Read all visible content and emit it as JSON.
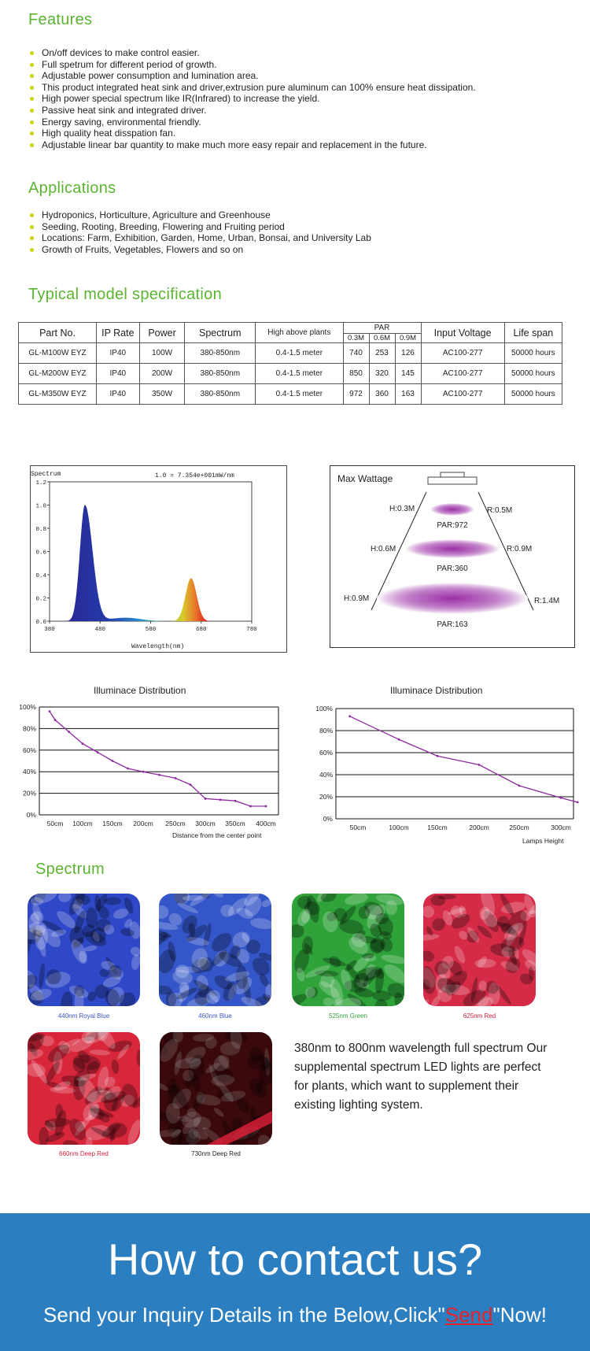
{
  "features": {
    "title": "Features",
    "items": [
      "On/off devices to make control easier.",
      "Full spetrum for different period of growth.",
      "Adjustable power consumption and lumination area.",
      "This product integrated heat sink and driver,extrusion pure aluminum can 100% ensure heat dissipation.",
      "High power special spectrum like IR(Infrared) to increase the yield.",
      "Passive heat sink and integrated driver.",
      "Energy saving, environmental friendly.",
      "High quality heat disspation fan.",
      "Adjustable linear bar quantity to make much more easy repair and replacement in the future."
    ]
  },
  "applications": {
    "title": "Applications",
    "items": [
      "Hydroponics, Horticulture, Agriculture and Greenhouse",
      "Seeding, Rooting, Breeding, Flowering and Fruiting period",
      "Locations: Farm, Exhibition, Garden, Home, Urban, Bonsai, and University Lab",
      "Growth of Fruits, Vegetables, Flowers and so on"
    ]
  },
  "spec": {
    "title": "Typical model specification",
    "headers": {
      "part": "Part No.",
      "ip": "IP Rate",
      "power": "Power",
      "spectrum": "Spectrum",
      "height": "High above plants",
      "par": "PAR",
      "par_sub": [
        "0.3M",
        "0.6M",
        "0.9M"
      ],
      "voltage": "Input Voltage",
      "life": "Life span"
    },
    "rows": [
      {
        "part": "GL-M100W EYZ",
        "ip": "IP40",
        "power": "100W",
        "spectrum": "380-850nm",
        "height": "0.4-1.5 meter",
        "par": [
          "740",
          "253",
          "126"
        ],
        "voltage": "AC100-277",
        "life": "50000 hours"
      },
      {
        "part": "GL-M200W EYZ",
        "ip": "IP40",
        "power": "200W",
        "spectrum": "380-850nm",
        "height": "0.4-1.5 meter",
        "par": [
          "850",
          "320",
          "145"
        ],
        "voltage": "AC100-277",
        "life": "50000 hours"
      },
      {
        "part": "GL-M350W EYZ",
        "ip": "IP40",
        "power": "350W",
        "spectrum": "380-850nm",
        "height": "0.4-1.5 meter",
        "par": [
          "972",
          "360",
          "163"
        ],
        "voltage": "AC100-277",
        "life": "50000 hours"
      }
    ]
  },
  "chart_data": [
    {
      "type": "area",
      "ylabel": "Spectrum",
      "xlabel": "Wavelength(nm)",
      "annotation": "1.0 = 7.354e+001mW/nm",
      "xlim": [
        380,
        780
      ],
      "ylim": [
        0,
        1.2
      ],
      "x_ticks": [
        "380",
        "480",
        "580",
        "680",
        "780"
      ],
      "y_ticks": [
        "0.0",
        "0.2",
        "0.4",
        "0.6",
        "0.8",
        "1.0",
        "1.2"
      ],
      "peaks": [
        {
          "center_nm": 450,
          "value": 1.0
        },
        {
          "center_nm": 660,
          "value": 0.37
        }
      ]
    },
    {
      "type": "line",
      "title": "Illuminace Distribution",
      "xlabel": "Distance from the center point",
      "categories": [
        "50cm",
        "100cm",
        "150cm",
        "200cm",
        "250cm",
        "300cm",
        "350cm",
        "400cm"
      ],
      "y_ticks": [
        "0%",
        "20%",
        "40%",
        "60%",
        "80%",
        "100%"
      ],
      "ylim": [
        0,
        100
      ],
      "x": [
        40,
        50,
        75,
        100,
        125,
        150,
        175,
        200,
        225,
        250,
        275,
        300,
        325,
        350,
        375,
        400
      ],
      "values": [
        96,
        88,
        77,
        66,
        58,
        50,
        43,
        40,
        37,
        34,
        28,
        15,
        14,
        13,
        8,
        8
      ],
      "color": "#8e2ba0"
    },
    {
      "type": "line",
      "title": "Illuminace Distribution",
      "xlabel": "Lamps Height",
      "categories": [
        "50cm",
        "100cm",
        "150cm",
        "200cm",
        "250cm",
        "300cm"
      ],
      "y_ticks": [
        "0%",
        "20%",
        "40%",
        "60%",
        "80%",
        "100%"
      ],
      "ylim": [
        0,
        100
      ],
      "x": [
        40,
        100,
        150,
        200,
        250,
        300,
        320
      ],
      "values": [
        93,
        72,
        57,
        49,
        30,
        19,
        15
      ],
      "color": "#8e2ba0"
    }
  ],
  "max_wattage": {
    "title": "Max  Wattage",
    "levels": [
      {
        "h": "H:0.3M",
        "r": "R:0.5M",
        "par": "PAR:972"
      },
      {
        "h": "H:0.6M",
        "r": "R:0.9M",
        "par": "PAR:360"
      },
      {
        "h": "H:0.9M",
        "r": "R:1.4M",
        "par": "PAR:163"
      }
    ],
    "beam_color": "#9b2fa6"
  },
  "spectrum_section": {
    "title": "Spectrum",
    "tiles": [
      {
        "caption": "440nm Royal Blue",
        "color": "#2f48c8",
        "caption_color": "#3a56c8"
      },
      {
        "caption": "460nm Blue",
        "color": "#3556c9",
        "caption_color": "#3a56c8"
      },
      {
        "caption": "525nm Green",
        "color": "#2fa33a",
        "caption_color": "#2fa33a"
      },
      {
        "caption": "625nm Red",
        "color": "#d52b46",
        "caption_color": "#d4233c"
      },
      {
        "caption": "660nm Deep Red",
        "color": "#d8263b",
        "caption_color": "#d4233c"
      },
      {
        "caption": "730nm Deep Red",
        "color": "#5a0e12",
        "caption_color": "#222222"
      }
    ],
    "note": "380nm to 800nm wavelength full spectrum Our supplemental spectrum LED lights are perfect for plants, which want to supplement  their existing lighting system."
  },
  "contact": {
    "headline": "How to contact us?",
    "line_before": "Send your Inquiry Details in the Below,Click\"",
    "send": "Send",
    "line_after": "\"Now!",
    "background": "#2b7fc1"
  }
}
